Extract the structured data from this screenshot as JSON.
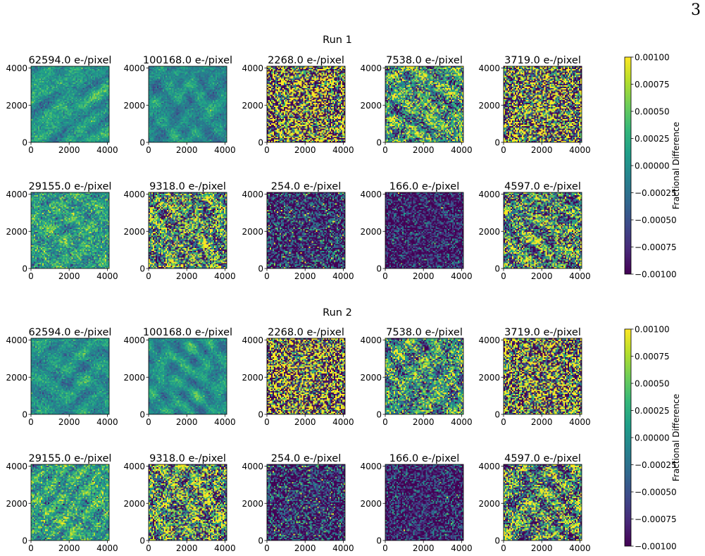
{
  "page_number": "3",
  "chart_data": {
    "type": "heatmap",
    "colormap": "viridis",
    "colorbar_label": "Fractional Difference",
    "colorbar_range": [
      -0.001,
      0.001
    ],
    "colorbar_ticks": [
      "0.00100",
      "0.00075",
      "0.00050",
      "0.00025",
      "0.00000",
      "−0.00025",
      "−0.00050",
      "−0.00075",
      "−0.00100"
    ],
    "x_ticks": [
      "0",
      "2000",
      "4000"
    ],
    "y_ticks": [
      "4000",
      "2000",
      "0"
    ],
    "xlim": [
      0,
      4096
    ],
    "ylim": [
      0,
      4096
    ],
    "runs": [
      {
        "title": "Run 1",
        "panels": [
          {
            "title": "62594.0 e-/pixel",
            "flux": 62594.0,
            "mean": 0.05,
            "std": 0.32,
            "smooth": 0.8
          },
          {
            "title": "100168.0 e-/pixel",
            "flux": 100168.0,
            "mean": -0.05,
            "std": 0.3,
            "smooth": 0.85
          },
          {
            "title": "2268.0 e-/pixel",
            "flux": 2268.0,
            "mean": 0.0,
            "std": 1.6,
            "smooth": 0.08
          },
          {
            "title": "7538.0 e-/pixel",
            "flux": 7538.0,
            "mean": 0.1,
            "std": 0.9,
            "smooth": 0.55
          },
          {
            "title": "3719.0 e-/pixel",
            "flux": 3719.0,
            "mean": 0.0,
            "std": 1.4,
            "smooth": 0.1
          },
          {
            "title": "29155.0 e-/pixel",
            "flux": 29155.0,
            "mean": 0.12,
            "std": 0.42,
            "smooth": 0.55
          },
          {
            "title": "9318.0 e-/pixel",
            "flux": 9318.0,
            "mean": 0.05,
            "std": 1.1,
            "smooth": 0.45
          },
          {
            "title": "254.0 e-/pixel",
            "flux": 254.0,
            "mean": -0.75,
            "std": 0.6,
            "smooth": 0.1
          },
          {
            "title": "166.0 e-/pixel",
            "flux": 166.0,
            "mean": -0.85,
            "std": 0.45,
            "smooth": 0.1
          },
          {
            "title": "4597.0 e-/pixel",
            "flux": 4597.0,
            "mean": 0.0,
            "std": 1.1,
            "smooth": 0.5
          }
        ]
      },
      {
        "title": "Run 2",
        "panels": [
          {
            "title": "62594.0 e-/pixel",
            "flux": 62594.0,
            "mean": 0.0,
            "std": 0.32,
            "smooth": 0.8
          },
          {
            "title": "100168.0 e-/pixel",
            "flux": 100168.0,
            "mean": 0.0,
            "std": 0.3,
            "smooth": 0.85
          },
          {
            "title": "2268.0 e-/pixel",
            "flux": 2268.0,
            "mean": 0.0,
            "std": 1.6,
            "smooth": 0.08
          },
          {
            "title": "7538.0 e-/pixel",
            "flux": 7538.0,
            "mean": 0.05,
            "std": 0.9,
            "smooth": 0.6
          },
          {
            "title": "3719.0 e-/pixel",
            "flux": 3719.0,
            "mean": 0.0,
            "std": 1.4,
            "smooth": 0.1
          },
          {
            "title": "29155.0 e-/pixel",
            "flux": 29155.0,
            "mean": 0.18,
            "std": 0.45,
            "smooth": 0.55
          },
          {
            "title": "9318.0 e-/pixel",
            "flux": 9318.0,
            "mean": 0.1,
            "std": 1.2,
            "smooth": 0.45
          },
          {
            "title": "254.0 e-/pixel",
            "flux": 254.0,
            "mean": -0.75,
            "std": 0.6,
            "smooth": 0.1
          },
          {
            "title": "166.0 e-/pixel",
            "flux": 166.0,
            "mean": -0.85,
            "std": 0.45,
            "smooth": 0.1
          },
          {
            "title": "4597.0 e-/pixel",
            "flux": 4597.0,
            "mean": 0.0,
            "std": 1.15,
            "smooth": 0.5
          }
        ]
      }
    ]
  }
}
